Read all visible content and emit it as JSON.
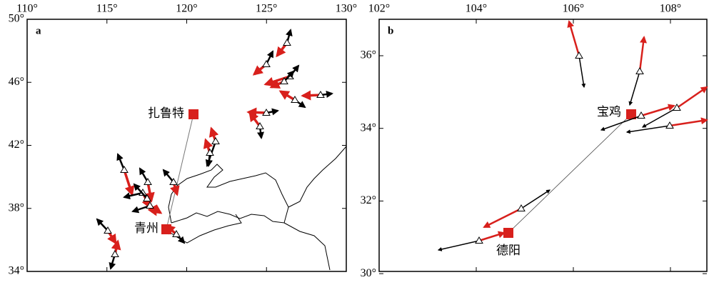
{
  "panel_a": {
    "label": "a",
    "lon_ticks": [
      "110°",
      "115°",
      "120°",
      "125°",
      "130°"
    ],
    "lat_ticks": [
      "50°",
      "46°",
      "42°",
      "38°",
      "34°"
    ],
    "cities": [
      "扎鲁特",
      "青州"
    ]
  },
  "panel_b": {
    "label": "b",
    "lon_ticks": [
      "102°",
      "104°",
      "106°",
      "108°"
    ],
    "lat_ticks": [
      "36°",
      "34°",
      "32°",
      "30°"
    ],
    "cities": [
      "宝鸡",
      "德阳"
    ]
  }
}
